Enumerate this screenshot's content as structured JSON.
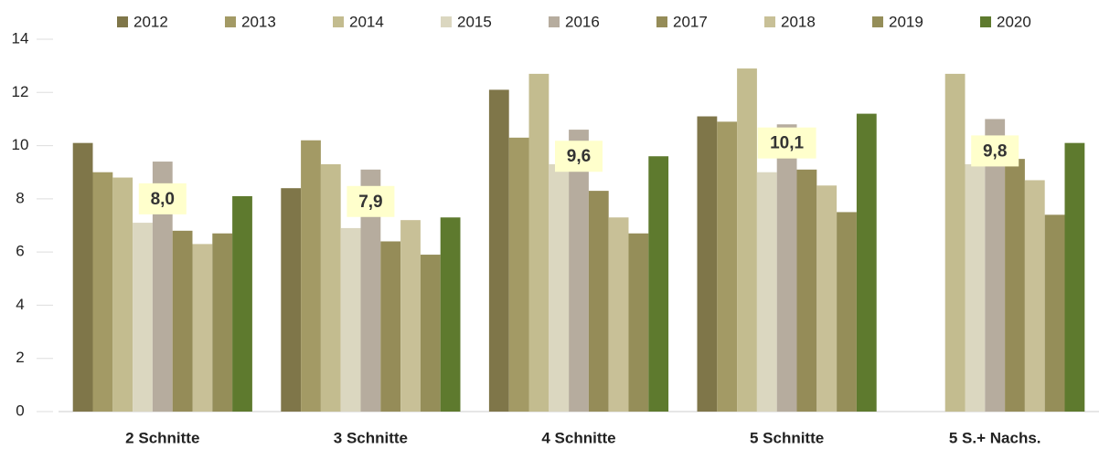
{
  "chart_data": {
    "type": "bar",
    "categories": [
      "2 Schnitte",
      "3 Schnitte",
      "4 Schnitte",
      "5 Schnitte",
      "5 S.+ Nachs."
    ],
    "series": [
      {
        "name": "2012",
        "color": "#7f7649",
        "values": [
          10.1,
          8.4,
          12.1,
          11.1,
          null
        ]
      },
      {
        "name": "2013",
        "color": "#a39a65",
        "values": [
          9.0,
          10.2,
          10.3,
          10.9,
          null
        ]
      },
      {
        "name": "2014",
        "color": "#c3bc8f",
        "values": [
          8.8,
          9.3,
          12.7,
          12.9,
          12.7
        ]
      },
      {
        "name": "2015",
        "color": "#dbd7c0",
        "values": [
          7.1,
          6.9,
          9.3,
          9.0,
          9.3
        ]
      },
      {
        "name": "2016",
        "color": "#b6ac9e",
        "values": [
          9.4,
          9.1,
          10.6,
          10.8,
          11.0
        ]
      },
      {
        "name": "2017",
        "color": "#958c58",
        "values": [
          6.8,
          6.4,
          8.3,
          9.1,
          9.5
        ]
      },
      {
        "name": "2018",
        "color": "#c8c097",
        "values": [
          6.3,
          7.2,
          7.3,
          8.5,
          8.7
        ]
      },
      {
        "name": "2019",
        "color": "#958e59",
        "values": [
          6.7,
          5.9,
          6.7,
          7.5,
          7.4
        ]
      },
      {
        "name": "2020",
        "color": "#5e7a2e",
        "values": [
          8.1,
          7.3,
          9.6,
          11.2,
          10.1
        ]
      }
    ],
    "averages": {
      "values": [
        8.0,
        7.9,
        9.6,
        10.1,
        9.8
      ],
      "value_labels": [
        "8,0",
        "7,9",
        "9,6",
        "10,1",
        "9,8"
      ]
    },
    "ylim": [
      0,
      14
    ],
    "yticks": [
      0,
      2,
      4,
      6,
      8,
      10,
      12,
      14
    ],
    "grid": false,
    "legend": "top"
  }
}
